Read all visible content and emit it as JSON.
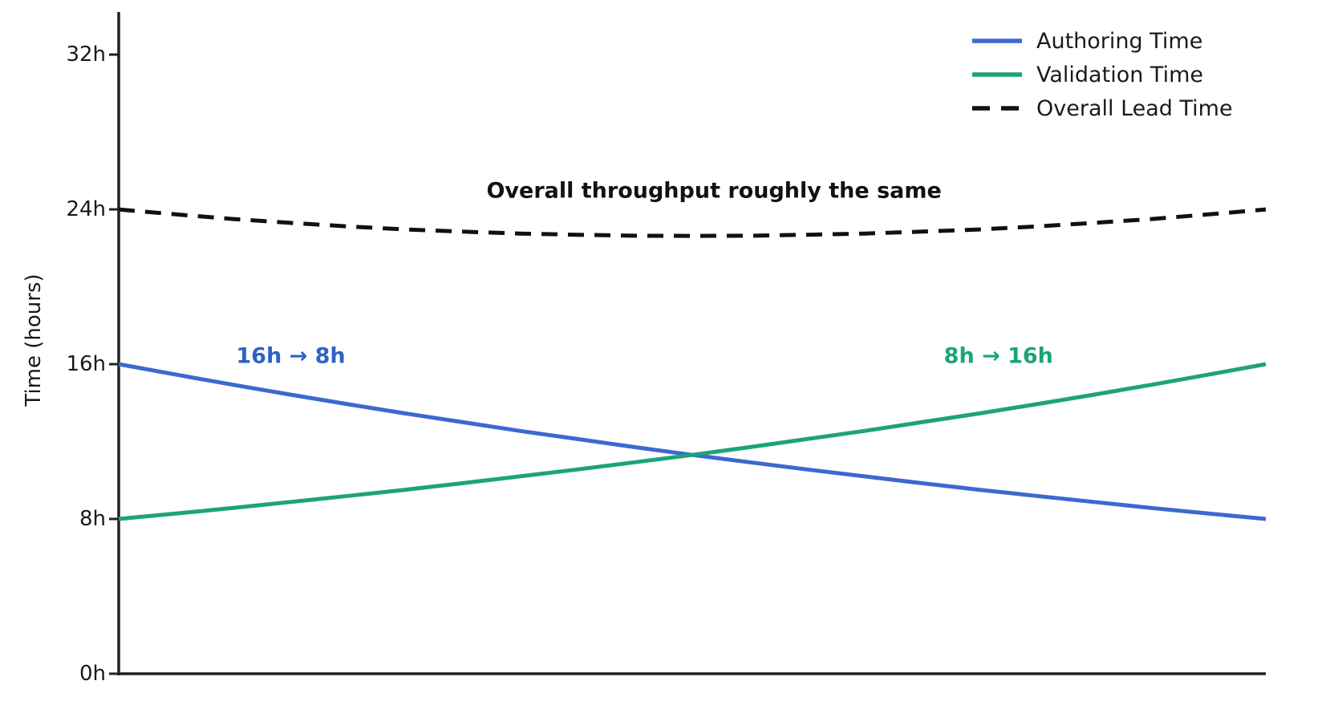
{
  "chart_data": {
    "type": "line",
    "title": "",
    "xlabel": "",
    "ylabel": "Time (hours)",
    "xlim": [
      0,
      1
    ],
    "ylim": [
      0,
      34.2
    ],
    "grid": false,
    "legend_position": "top-right",
    "x_axis_ticks": [],
    "yticks": [
      {
        "value": 0,
        "label": "0h"
      },
      {
        "value": 8,
        "label": "8h"
      },
      {
        "value": 16,
        "label": "16h"
      },
      {
        "value": 24,
        "label": "24h"
      },
      {
        "value": 32,
        "label": "32h"
      }
    ],
    "x": [
      0,
      0.05,
      0.1,
      0.15,
      0.2,
      0.25,
      0.3,
      0.35,
      0.4,
      0.45,
      0.5,
      0.55,
      0.6,
      0.65,
      0.7,
      0.75,
      0.8,
      0.85,
      0.9,
      0.95,
      1
    ],
    "series": [
      {
        "name": "Authoring Time",
        "color": "#3d68cf",
        "style": "solid",
        "start_value_hours": 16,
        "end_value_hours": 8,
        "values": [
          16,
          15.46,
          14.93,
          14.42,
          13.93,
          13.45,
          13,
          12.55,
          12.13,
          11.71,
          11.31,
          10.93,
          10.56,
          10.2,
          9.85,
          9.51,
          9.19,
          8.88,
          8.57,
          8.28,
          8
        ]
      },
      {
        "name": "Validation Time",
        "color": "#1ca478",
        "style": "solid",
        "start_value_hours": 8,
        "end_value_hours": 16,
        "values": [
          8,
          8.28,
          8.57,
          8.88,
          9.19,
          9.51,
          9.85,
          10.2,
          10.56,
          10.93,
          11.31,
          11.71,
          12.13,
          12.55,
          13,
          13.45,
          13.93,
          14.42,
          14.93,
          15.46,
          16
        ]
      },
      {
        "name": "Overall Lead Time",
        "color": "#111111",
        "style": "dashed",
        "start_value_hours": 24,
        "end_value_hours": 24,
        "min_value_hours": 22.63,
        "values": [
          24,
          23.74,
          23.5,
          23.3,
          23.12,
          22.96,
          22.85,
          22.75,
          22.69,
          22.64,
          22.63,
          22.64,
          22.69,
          22.75,
          22.85,
          22.96,
          23.12,
          23.3,
          23.5,
          23.74,
          24
        ]
      }
    ],
    "annotations": [
      {
        "text": "Overall throughput roughly the same",
        "color": "#111111",
        "x": 0.519,
        "y": 24.95
      },
      {
        "text": "16h → 8h",
        "color": "#2f62c8",
        "x": 0.15,
        "y": 16.4
      },
      {
        "text": "8h → 16h",
        "color": "#1ca478",
        "x": 0.767,
        "y": 16.4
      }
    ],
    "axis_color": "#222222"
  }
}
